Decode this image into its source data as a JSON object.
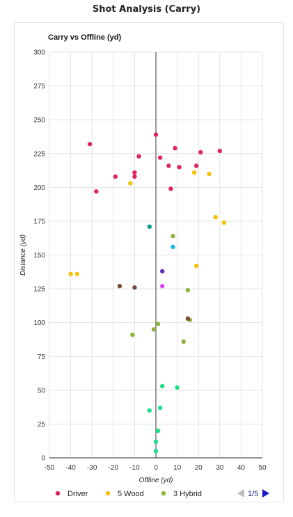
{
  "header": {
    "title": "Shot Analysis (Carry)"
  },
  "chart_data": {
    "type": "scatter",
    "title": "Carry vs Offline (yd)",
    "xlabel": "Offline (yd)",
    "ylabel": "Distance (yd)",
    "xlim": [
      -50,
      50
    ],
    "ylim": [
      0,
      300
    ],
    "x_ticks": [
      -50,
      -40,
      -30,
      -20,
      -10,
      0,
      10,
      20,
      30,
      40,
      50
    ],
    "y_ticks": [
      0,
      25,
      50,
      75,
      100,
      125,
      150,
      175,
      200,
      225,
      250,
      275,
      300
    ],
    "grid": true,
    "legend_position": "bottom",
    "series": [
      {
        "name": "Driver",
        "color": "#e0245e",
        "points": [
          [
            -31,
            232
          ],
          [
            0,
            239
          ],
          [
            9,
            229
          ],
          [
            30,
            227
          ],
          [
            21,
            226
          ],
          [
            -8,
            223
          ],
          [
            2,
            222
          ],
          [
            19,
            216
          ],
          [
            11,
            215
          ],
          [
            6,
            216
          ],
          [
            -10,
            211
          ],
          [
            -19,
            208
          ],
          [
            -10,
            208
          ],
          [
            7,
            199
          ],
          [
            -28,
            197
          ]
        ]
      },
      {
        "name": "5 Wood",
        "color": "#f5c20b",
        "points": [
          [
            -12,
            203
          ],
          [
            18,
            211
          ],
          [
            25,
            210
          ],
          [
            28,
            178
          ],
          [
            32,
            174
          ],
          [
            19,
            142
          ],
          [
            -40,
            136
          ],
          [
            -37,
            136
          ]
        ]
      },
      {
        "name": "3 Hybrid",
        "color": "#8db33a",
        "points": [
          [
            8,
            164
          ],
          [
            15,
            124
          ],
          [
            1,
            99
          ],
          [
            -1,
            95
          ],
          [
            16,
            102
          ],
          [
            -11,
            91
          ],
          [
            13,
            86
          ]
        ]
      },
      {
        "name": "",
        "color": "#0f9b8e",
        "points": [
          [
            -3,
            171
          ]
        ]
      },
      {
        "name": "",
        "color": "#19b5e6",
        "points": [
          [
            8,
            156
          ]
        ]
      },
      {
        "name": "",
        "color": "#5e2fb8",
        "points": [
          [
            3,
            138
          ]
        ]
      },
      {
        "name": "",
        "color": "#e040fb",
        "points": [
          [
            3,
            127
          ]
        ]
      },
      {
        "name": "",
        "color": "#7b4a3a",
        "points": [
          [
            -17,
            127
          ],
          [
            -10,
            126
          ],
          [
            15,
            103
          ]
        ]
      },
      {
        "name": "",
        "color": "#1ee08a",
        "points": [
          [
            3,
            53
          ],
          [
            10,
            52
          ],
          [
            2,
            37
          ],
          [
            -3,
            35
          ],
          [
            1,
            20
          ],
          [
            0,
            12
          ],
          [
            0,
            5
          ]
        ]
      }
    ]
  },
  "legend": {
    "items": [
      {
        "label": "Driver",
        "color": "#e0245e"
      },
      {
        "label": "5 Wood",
        "color": "#f5c20b"
      },
      {
        "label": "3 Hybrid",
        "color": "#8db33a"
      }
    ],
    "pager_text": "1/5",
    "pager_prev_color": "#bbbbbb",
    "pager_next_color": "#1a1acc"
  }
}
